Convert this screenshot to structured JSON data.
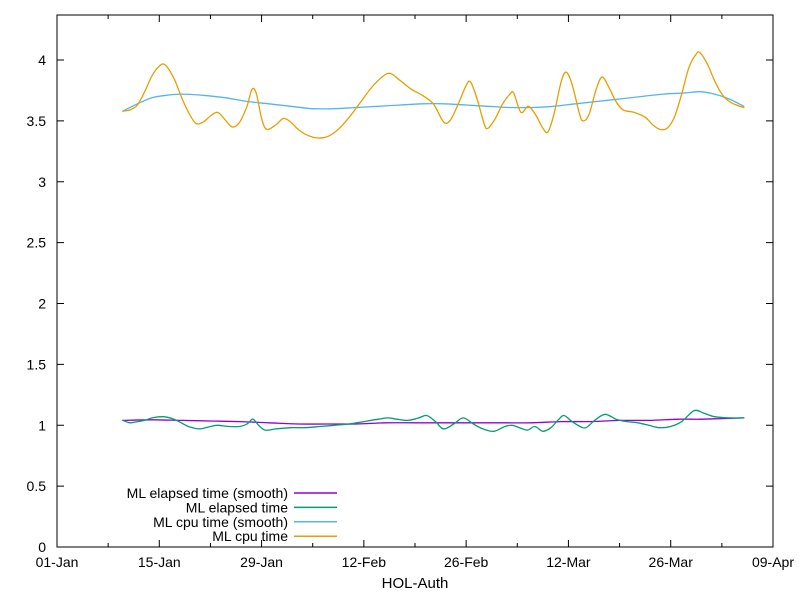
{
  "figure": {
    "background": "#ffffff",
    "axis_color": "#000000",
    "text_color": "#000000"
  },
  "chart_data": {
    "type": "line",
    "title": "",
    "xlabel": "HOL-Auth",
    "ylabel": "",
    "x_unit": "days since 01-Jan",
    "xlim": [
      0,
      98
    ],
    "ylim": [
      0,
      4.37
    ],
    "grid": false,
    "legend_position": "bottom-left-inside",
    "x_axis": {
      "major_ticks": [
        {
          "day": 0,
          "label": "01-Jan"
        },
        {
          "day": 14,
          "label": "15-Jan"
        },
        {
          "day": 28,
          "label": "29-Jan"
        },
        {
          "day": 42,
          "label": "12-Feb"
        },
        {
          "day": 56,
          "label": "26-Feb"
        },
        {
          "day": 70,
          "label": "12-Mar"
        },
        {
          "day": 84,
          "label": "26-Mar"
        },
        {
          "day": 98,
          "label": "09-Apr"
        }
      ],
      "minor_ticks": [
        7,
        21,
        35,
        49,
        63,
        77,
        91
      ]
    },
    "y_axis": {
      "major_ticks": [
        {
          "v": 0,
          "label": "0"
        },
        {
          "v": 0.5,
          "label": "0.5"
        },
        {
          "v": 1,
          "label": "1"
        },
        {
          "v": 1.5,
          "label": "1.5"
        },
        {
          "v": 2,
          "label": "2"
        },
        {
          "v": 2.5,
          "label": "2.5"
        },
        {
          "v": 3,
          "label": "3"
        },
        {
          "v": 3.5,
          "label": "3.5"
        },
        {
          "v": 4,
          "label": "4"
        }
      ]
    },
    "series": [
      {
        "name": "ML elapsed time (smooth)",
        "key": "ml-elapsed-time-smooth",
        "color": "#9400D3",
        "points": [
          [
            9,
            1.04
          ],
          [
            13,
            1.045
          ],
          [
            17,
            1.04
          ],
          [
            21,
            1.035
          ],
          [
            25,
            1.03
          ],
          [
            29,
            1.02
          ],
          [
            33,
            1.01
          ],
          [
            37,
            1.01
          ],
          [
            41,
            1.01
          ],
          [
            45,
            1.02
          ],
          [
            49,
            1.02
          ],
          [
            53,
            1.02
          ],
          [
            57,
            1.02
          ],
          [
            61,
            1.02
          ],
          [
            65,
            1.02
          ],
          [
            69,
            1.03
          ],
          [
            73,
            1.03
          ],
          [
            77,
            1.04
          ],
          [
            81,
            1.04
          ],
          [
            85,
            1.05
          ],
          [
            88,
            1.05
          ],
          [
            91,
            1.055
          ],
          [
            94,
            1.06
          ]
        ]
      },
      {
        "name": "ML elapsed time",
        "key": "ml-elapsed-time",
        "color": "#009E73",
        "points": [
          [
            9,
            1.04
          ],
          [
            10,
            1.02
          ],
          [
            11,
            1.03
          ],
          [
            12,
            1.04
          ],
          [
            13,
            1.06
          ],
          [
            14.5,
            1.07
          ],
          [
            16,
            1.05
          ],
          [
            17,
            1.02
          ],
          [
            18,
            0.99
          ],
          [
            19.5,
            0.97
          ],
          [
            21,
            0.99
          ],
          [
            22,
            1.0
          ],
          [
            23.5,
            0.99
          ],
          [
            25,
            0.99
          ],
          [
            26,
            1.01
          ],
          [
            26.8,
            1.05
          ],
          [
            27.6,
            1.0
          ],
          [
            28.5,
            0.96
          ],
          [
            30,
            0.97
          ],
          [
            32,
            0.98
          ],
          [
            34,
            0.98
          ],
          [
            36,
            0.99
          ],
          [
            38,
            1.0
          ],
          [
            40,
            1.01
          ],
          [
            42,
            1.03
          ],
          [
            44,
            1.05
          ],
          [
            45.3,
            1.06
          ],
          [
            46.5,
            1.05
          ],
          [
            48,
            1.04
          ],
          [
            49.5,
            1.06
          ],
          [
            50.6,
            1.08
          ],
          [
            51.8,
            1.03
          ],
          [
            52.9,
            0.97
          ],
          [
            54.3,
            1.01
          ],
          [
            55.6,
            1.06
          ],
          [
            57,
            1.01
          ],
          [
            58.3,
            0.97
          ],
          [
            59.8,
            0.95
          ],
          [
            61.3,
            0.99
          ],
          [
            62.3,
            1.0
          ],
          [
            63.3,
            0.98
          ],
          [
            64.4,
            0.96
          ],
          [
            65.4,
            0.99
          ],
          [
            66.5,
            0.95
          ],
          [
            67.6,
            0.98
          ],
          [
            68.7,
            1.05
          ],
          [
            69.4,
            1.08
          ],
          [
            70.5,
            1.03
          ],
          [
            71.6,
            0.99
          ],
          [
            72.4,
            0.98
          ],
          [
            73.6,
            1.04
          ],
          [
            75,
            1.09
          ],
          [
            76.5,
            1.05
          ],
          [
            78,
            1.03
          ],
          [
            79.5,
            1.02
          ],
          [
            81,
            1.0
          ],
          [
            82.5,
            0.98
          ],
          [
            84,
            0.99
          ],
          [
            85.5,
            1.03
          ],
          [
            87.2,
            1.12
          ],
          [
            88.5,
            1.1
          ],
          [
            90,
            1.07
          ],
          [
            92,
            1.06
          ],
          [
            94,
            1.06
          ]
        ]
      },
      {
        "name": "ML cpu time (smooth)",
        "key": "ml-cpu-time-smooth",
        "color": "#56B4E9",
        "points": [
          [
            9,
            3.58
          ],
          [
            11,
            3.64
          ],
          [
            13,
            3.69
          ],
          [
            15,
            3.71
          ],
          [
            17,
            3.72
          ],
          [
            20,
            3.71
          ],
          [
            23,
            3.69
          ],
          [
            26,
            3.66
          ],
          [
            29,
            3.64
          ],
          [
            32,
            3.62
          ],
          [
            35,
            3.6
          ],
          [
            38,
            3.6
          ],
          [
            41,
            3.61
          ],
          [
            44,
            3.62
          ],
          [
            47,
            3.63
          ],
          [
            50,
            3.64
          ],
          [
            53,
            3.64
          ],
          [
            56,
            3.63
          ],
          [
            59,
            3.62
          ],
          [
            62,
            3.61
          ],
          [
            65,
            3.61
          ],
          [
            68,
            3.62
          ],
          [
            71,
            3.64
          ],
          [
            74,
            3.66
          ],
          [
            77,
            3.68
          ],
          [
            80,
            3.7
          ],
          [
            83,
            3.72
          ],
          [
            86,
            3.73
          ],
          [
            88,
            3.74
          ],
          [
            90,
            3.72
          ],
          [
            92,
            3.68
          ],
          [
            94,
            3.62
          ]
        ]
      },
      {
        "name": "ML cpu time",
        "key": "ml-cpu-time",
        "color": "#E69F00",
        "points": [
          [
            9,
            3.58
          ],
          [
            10,
            3.59
          ],
          [
            11,
            3.63
          ],
          [
            12,
            3.74
          ],
          [
            13,
            3.87
          ],
          [
            14,
            3.95
          ],
          [
            14.8,
            3.96
          ],
          [
            16,
            3.85
          ],
          [
            17,
            3.7
          ],
          [
            18,
            3.57
          ],
          [
            19,
            3.48
          ],
          [
            20,
            3.49
          ],
          [
            21,
            3.54
          ],
          [
            22,
            3.57
          ],
          [
            23,
            3.51
          ],
          [
            24,
            3.45
          ],
          [
            25,
            3.49
          ],
          [
            26,
            3.62
          ],
          [
            26.7,
            3.76
          ],
          [
            27.3,
            3.72
          ],
          [
            28,
            3.52
          ],
          [
            28.7,
            3.43
          ],
          [
            30,
            3.47
          ],
          [
            31,
            3.52
          ],
          [
            32,
            3.49
          ],
          [
            33,
            3.43
          ],
          [
            34,
            3.39
          ],
          [
            35.5,
            3.36
          ],
          [
            37,
            3.37
          ],
          [
            38.5,
            3.43
          ],
          [
            40,
            3.53
          ],
          [
            41.5,
            3.65
          ],
          [
            43,
            3.77
          ],
          [
            44.5,
            3.86
          ],
          [
            45.6,
            3.89
          ],
          [
            47,
            3.83
          ],
          [
            48.5,
            3.76
          ],
          [
            50,
            3.71
          ],
          [
            51.5,
            3.64
          ],
          [
            52.7,
            3.51
          ],
          [
            53.3,
            3.48
          ],
          [
            54,
            3.52
          ],
          [
            55,
            3.65
          ],
          [
            56,
            3.79
          ],
          [
            56.6,
            3.82
          ],
          [
            57.5,
            3.68
          ],
          [
            58.5,
            3.47
          ],
          [
            59,
            3.44
          ],
          [
            60,
            3.52
          ],
          [
            61,
            3.64
          ],
          [
            62,
            3.72
          ],
          [
            62.5,
            3.73
          ],
          [
            63.5,
            3.57
          ],
          [
            64.5,
            3.62
          ],
          [
            65.5,
            3.55
          ],
          [
            66.5,
            3.44
          ],
          [
            67.2,
            3.41
          ],
          [
            68,
            3.55
          ],
          [
            69,
            3.82
          ],
          [
            69.7,
            3.9
          ],
          [
            70.5,
            3.8
          ],
          [
            71.5,
            3.56
          ],
          [
            72,
            3.5
          ],
          [
            72.8,
            3.55
          ],
          [
            73.8,
            3.76
          ],
          [
            74.6,
            3.86
          ],
          [
            75.5,
            3.78
          ],
          [
            76.5,
            3.66
          ],
          [
            77.5,
            3.59
          ],
          [
            79,
            3.57
          ],
          [
            80.5,
            3.53
          ],
          [
            81.5,
            3.47
          ],
          [
            82.5,
            3.43
          ],
          [
            83.5,
            3.44
          ],
          [
            84.5,
            3.53
          ],
          [
            85.5,
            3.72
          ],
          [
            86.5,
            3.94
          ],
          [
            87.5,
            4.05
          ],
          [
            88,
            4.06
          ],
          [
            89,
            3.97
          ],
          [
            90,
            3.83
          ],
          [
            91,
            3.72
          ],
          [
            92,
            3.66
          ],
          [
            93,
            3.63
          ],
          [
            94,
            3.61
          ]
        ]
      }
    ]
  }
}
